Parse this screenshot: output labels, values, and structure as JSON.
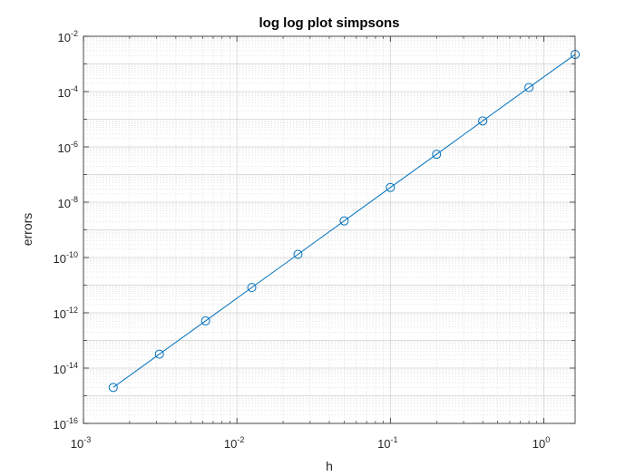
{
  "chart_data": {
    "type": "line",
    "title": "log log plot simpsons",
    "xlabel": "h",
    "ylabel": "errors",
    "xscale": "log",
    "yscale": "log",
    "xlim": [
      0.001,
      1.6
    ],
    "ylim": [
      1e-16,
      0.01
    ],
    "grid": "on (major and minor)",
    "marker": "circle",
    "line_color": "#0072BD",
    "xticks": [
      {
        "base": "10",
        "exp": "-3",
        "value": 0.001
      },
      {
        "base": "10",
        "exp": "-2",
        "value": 0.01
      },
      {
        "base": "10",
        "exp": "-1",
        "value": 0.1
      },
      {
        "base": "10",
        "exp": "0",
        "value": 1
      }
    ],
    "yticks": [
      {
        "base": "10",
        "exp": "-2",
        "value": 0.01
      },
      {
        "base": "10",
        "exp": "-4",
        "value": 0.0001
      },
      {
        "base": "10",
        "exp": "-6",
        "value": 1e-06
      },
      {
        "base": "10",
        "exp": "-8",
        "value": 1e-08
      },
      {
        "base": "10",
        "exp": "-10",
        "value": 1e-10
      },
      {
        "base": "10",
        "exp": "-12",
        "value": 1e-12
      },
      {
        "base": "10",
        "exp": "-14",
        "value": 1e-14
      },
      {
        "base": "10",
        "exp": "-16",
        "value": 1e-16
      }
    ],
    "series": [
      {
        "x": [
          0.0015625,
          0.003125,
          0.00625,
          0.0125,
          0.025,
          0.05,
          0.1,
          0.2,
          0.4,
          0.8,
          1.6
        ],
        "y": [
          2e-15,
          3.2e-14,
          5.1e-13,
          8.2e-12,
          1.3e-10,
          2.1e-09,
          3.4e-08,
          5.4e-07,
          8.7e-06,
          0.00014,
          0.0022
        ]
      }
    ]
  }
}
